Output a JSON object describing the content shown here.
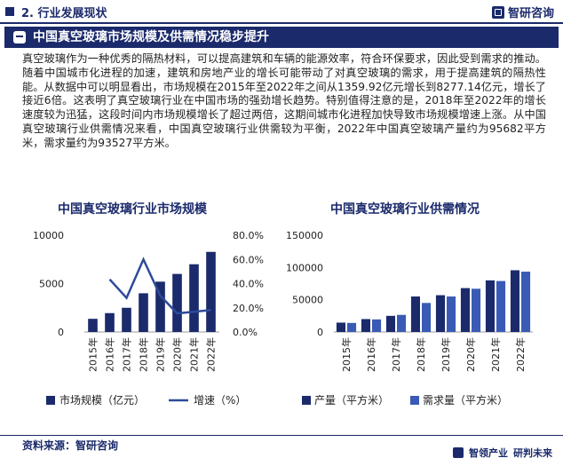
{
  "header": {
    "section": "2. 行业发展现状",
    "brand": "智研咨询"
  },
  "banner": {
    "title": "中国真空玻璃市场规模及供需情况稳步提升"
  },
  "body_text": "真空玻璃作为一种优秀的隔热材料，可以提高建筑和车辆的能源效率，符合环保要求，因此受到需求的推动。随着中国城市化进程的加速，建筑和房地产业的增长可能带动了对真空玻璃的需求，用于提高建筑的隔热性能。从数据中可以明显看出，市场规模在2015年至2022年之间从1359.92亿元增长到8277.14亿元，增长了接近6倍。这表明了真空玻璃行业在中国市场的强劲增长趋势。特别值得注意的是，2018年至2022年的增长速度较为迅猛，这段时间内市场规模增长了超过两倍，这期间城市化进程加快导致市场规模增速上涨。从中国真空玻璃行业供需情况来看，中国真空玻璃行业供需较为平衡，2022年中国真空玻璃产量约为95682平方米，需求量约为93527平方米。",
  "footer": {
    "source": "资料来源：智研咨询",
    "slogan_left": "智领产业",
    "slogan_right": "研判未来"
  },
  "watermark": "智研咨询",
  "colors": {
    "navy": "#1b2a6b",
    "bar_dark": "#1b2a6b",
    "bar_light": "#3a5bb5",
    "line": "#2e4a9a"
  },
  "chart_data": [
    {
      "type": "bar",
      "title": "中国真空玻璃行业市场规模",
      "categories": [
        "2015年",
        "2016年",
        "2017年",
        "2018年",
        "2019年",
        "2020年",
        "2021年",
        "2022年"
      ],
      "series": [
        {
          "name": "市场规模（亿元）",
          "kind": "bar",
          "axis": "left",
          "values": [
            1359.92,
            1950,
            2500,
            4000,
            5200,
            6000,
            7000,
            8277.14
          ]
        },
        {
          "name": "增速（%）",
          "kind": "line",
          "axis": "right",
          "values": [
            null,
            43.5,
            28.2,
            60.0,
            30.0,
            15.4,
            16.7,
            18.2
          ]
        }
      ],
      "ylim_left": [
        0,
        10000
      ],
      "yticks_left": [
        "0",
        "5000",
        "10000"
      ],
      "ylim_right": [
        0,
        80
      ],
      "yticks_right": [
        "0.0%",
        "20.0%",
        "40.0%",
        "60.0%",
        "80.0%"
      ],
      "legend": [
        "市场规模（亿元）",
        "增速（%）"
      ],
      "legend_position": "bottom"
    },
    {
      "type": "bar",
      "title": "中国真空玻璃行业供需情况",
      "categories": [
        "2015年",
        "2016年",
        "2017年",
        "2018年",
        "2019年",
        "2020年",
        "2021年",
        "2022年"
      ],
      "series": [
        {
          "name": "产量（平方米）",
          "values": [
            14500,
            20000,
            25000,
            55000,
            57000,
            68000,
            80000,
            95682
          ]
        },
        {
          "name": "需求量（平方米）",
          "values": [
            14000,
            19500,
            26500,
            45000,
            55000,
            67000,
            79000,
            93527
          ]
        }
      ],
      "ylim": [
        0,
        150000
      ],
      "yticks": [
        "0",
        "50000",
        "100000",
        "150000"
      ],
      "legend": [
        "产量（平方米）",
        "需求量（平方米）"
      ],
      "legend_position": "bottom"
    }
  ]
}
